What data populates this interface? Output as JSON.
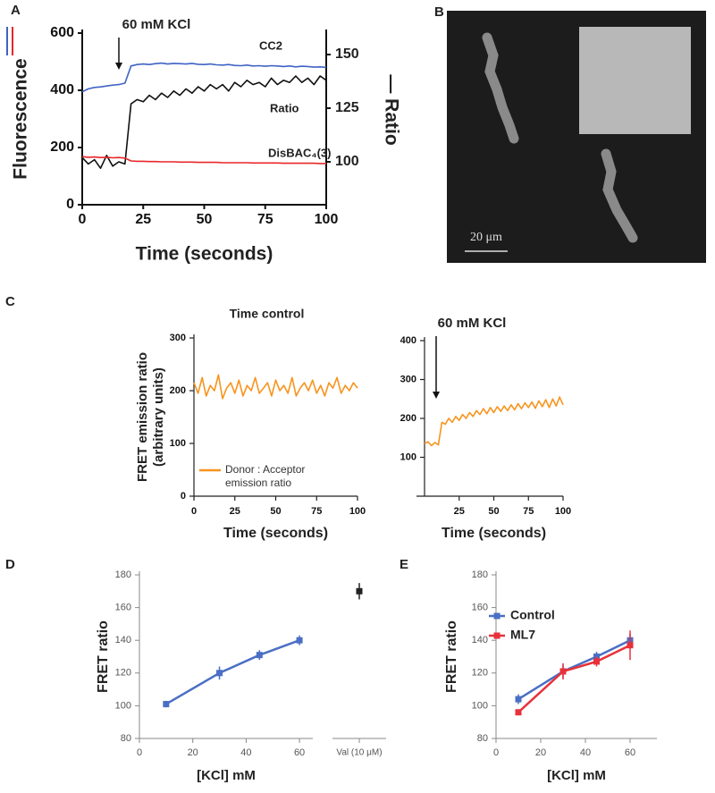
{
  "panel_labels": [
    "A",
    "B",
    "C",
    "D",
    "E"
  ],
  "image": {
    "scale_label": "20 μm"
  },
  "chart_data": [
    {
      "type": "line",
      "xlabel": "Time (seconds)",
      "ylabel": "Fluorescence",
      "y2label": "— Ratio",
      "annotation": "60 mM KCl",
      "x": [
        0,
        2.5,
        5,
        7.5,
        10,
        12.5,
        15,
        17.5,
        20,
        22.5,
        25,
        27.5,
        30,
        32.5,
        35,
        37.5,
        40,
        42.5,
        45,
        47.5,
        50,
        52.5,
        55,
        57.5,
        60,
        62.5,
        65,
        67.5,
        70,
        72.5,
        75,
        77.5,
        80,
        82.5,
        85,
        87.5,
        90,
        92.5,
        95,
        97.5,
        100
      ],
      "xlim": [
        0,
        100
      ],
      "xticks": [
        0,
        25,
        50,
        75,
        100
      ],
      "ylim": [
        0,
        600
      ],
      "yticks": [
        0,
        200,
        400,
        600
      ],
      "y2lim": [
        80,
        160
      ],
      "y2ticks": [
        100,
        125,
        150
      ],
      "series": [
        {
          "name": "CC2",
          "color": "#3f63c4",
          "values": [
            395,
            405,
            410,
            412,
            415,
            418,
            420,
            425,
            485,
            490,
            492,
            490,
            493,
            495,
            492,
            494,
            493,
            492,
            494,
            491,
            490,
            492,
            489,
            488,
            490,
            487,
            486,
            488,
            485,
            486,
            484,
            486,
            485,
            483,
            485,
            482,
            484,
            483,
            481,
            482,
            480
          ]
        },
        {
          "name": "Ratio",
          "color": "#111111",
          "axis": "y2",
          "values": [
            102,
            99,
            101,
            97,
            103,
            98,
            100,
            99,
            127,
            129,
            128,
            131,
            129,
            132,
            130,
            133,
            131,
            134,
            132,
            135,
            133,
            136,
            134,
            136,
            133,
            137,
            135,
            138,
            136,
            137,
            135,
            139,
            136,
            138,
            137,
            140,
            137,
            139,
            136,
            140,
            138
          ]
        },
        {
          "name": "DisBAC₄(3)",
          "color": "#e8262a",
          "values": [
            168,
            166,
            167,
            165,
            166,
            164,
            165,
            163,
            153,
            152,
            152,
            151,
            151,
            150,
            150,
            150,
            149,
            149,
            149,
            148,
            148,
            148,
            148,
            147,
            147,
            147,
            147,
            147,
            146,
            146,
            146,
            146,
            146,
            145,
            145,
            145,
            145,
            145,
            145,
            144,
            144
          ]
        }
      ]
    },
    {
      "type": "line",
      "title": "Time control",
      "xlabel": "Time (seconds)",
      "ylabel": [
        "FRET emission ratio",
        "(arbitrary units)"
      ],
      "x": [
        0,
        2.5,
        5,
        7.5,
        10,
        12.5,
        15,
        17.5,
        20,
        22.5,
        25,
        27.5,
        30,
        32.5,
        35,
        37.5,
        40,
        42.5,
        45,
        47.5,
        50,
        52.5,
        55,
        57.5,
        60,
        62.5,
        65,
        67.5,
        70,
        72.5,
        75,
        77.5,
        80,
        82.5,
        85,
        87.5,
        90,
        92.5,
        95,
        97.5,
        100
      ],
      "xlim": [
        0,
        100
      ],
      "xticks": [
        0,
        25,
        50,
        75,
        100
      ],
      "ylim": [
        0,
        300
      ],
      "yticks": [
        0,
        100,
        200,
        300
      ],
      "series": [
        {
          "name": "Donor : Acceptor emission ratio",
          "color": "#f7941d",
          "values": [
            215,
            195,
            225,
            190,
            210,
            200,
            230,
            185,
            205,
            215,
            195,
            220,
            190,
            210,
            200,
            225,
            195,
            205,
            215,
            190,
            220,
            200,
            210,
            195,
            225,
            190,
            205,
            215,
            200,
            220,
            195,
            210,
            190,
            215,
            205,
            225,
            195,
            210,
            200,
            215,
            205
          ]
        }
      ]
    },
    {
      "type": "line",
      "xlabel": "Time (seconds)",
      "annotation": "60 mM KCl",
      "x": [
        0,
        2.5,
        5,
        7.5,
        10,
        12.5,
        15,
        17.5,
        20,
        22.5,
        25,
        27.5,
        30,
        32.5,
        35,
        37.5,
        40,
        42.5,
        45,
        47.5,
        50,
        52.5,
        55,
        57.5,
        60,
        62.5,
        65,
        67.5,
        70,
        72.5,
        75,
        77.5,
        80,
        82.5,
        85,
        87.5,
        90,
        92.5,
        95,
        97.5,
        100
      ],
      "xlim": [
        0,
        100
      ],
      "xticks": [
        25,
        50,
        75,
        100
      ],
      "ylim": [
        0,
        400
      ],
      "yticks": [
        100,
        200,
        300,
        400
      ],
      "series": [
        {
          "color": "#f7941d",
          "values": [
            135,
            140,
            130,
            138,
            132,
            190,
            185,
            200,
            190,
            205,
            195,
            210,
            200,
            215,
            205,
            220,
            210,
            225,
            212,
            228,
            215,
            230,
            218,
            232,
            220,
            235,
            222,
            238,
            225,
            240,
            228,
            242,
            226,
            245,
            230,
            248,
            228,
            250,
            232,
            255,
            235
          ]
        }
      ]
    },
    {
      "type": "errorbar",
      "xlabel": "[KCl] mM",
      "ylabel": "FRET ratio",
      "x": [
        10,
        30,
        45,
        60
      ],
      "xlim": [
        0,
        65
      ],
      "xticks": [
        0,
        20,
        40,
        60
      ],
      "ylim": [
        80,
        180
      ],
      "yticks": [
        80,
        100,
        120,
        140,
        160,
        180
      ],
      "series": [
        {
          "color": "#4a6fc4",
          "values": [
            101,
            120,
            131,
            140
          ],
          "errors": [
            2,
            4,
            3,
            3
          ]
        }
      ],
      "extra": {
        "label": "Val (10 μM)",
        "value": 170,
        "error": 5,
        "color": "#222222"
      }
    },
    {
      "type": "errorbar",
      "xlabel": "[KCl] mM",
      "ylabel": "FRET ratio",
      "legend": "upper left",
      "x": [
        10,
        30,
        45,
        60
      ],
      "xlim": [
        0,
        72
      ],
      "xticks": [
        0,
        20,
        40,
        60
      ],
      "ylim": [
        80,
        180
      ],
      "yticks": [
        80,
        100,
        120,
        140,
        160,
        180
      ],
      "series": [
        {
          "name": "Control",
          "color": "#4a6fc4",
          "values": [
            104,
            121,
            130,
            140
          ],
          "errors": [
            3,
            4,
            3,
            4
          ]
        },
        {
          "name": "ML7",
          "color": "#e8313a",
          "values": [
            96,
            121,
            127,
            137
          ],
          "errors": [
            1,
            5,
            3,
            9
          ]
        }
      ]
    }
  ]
}
